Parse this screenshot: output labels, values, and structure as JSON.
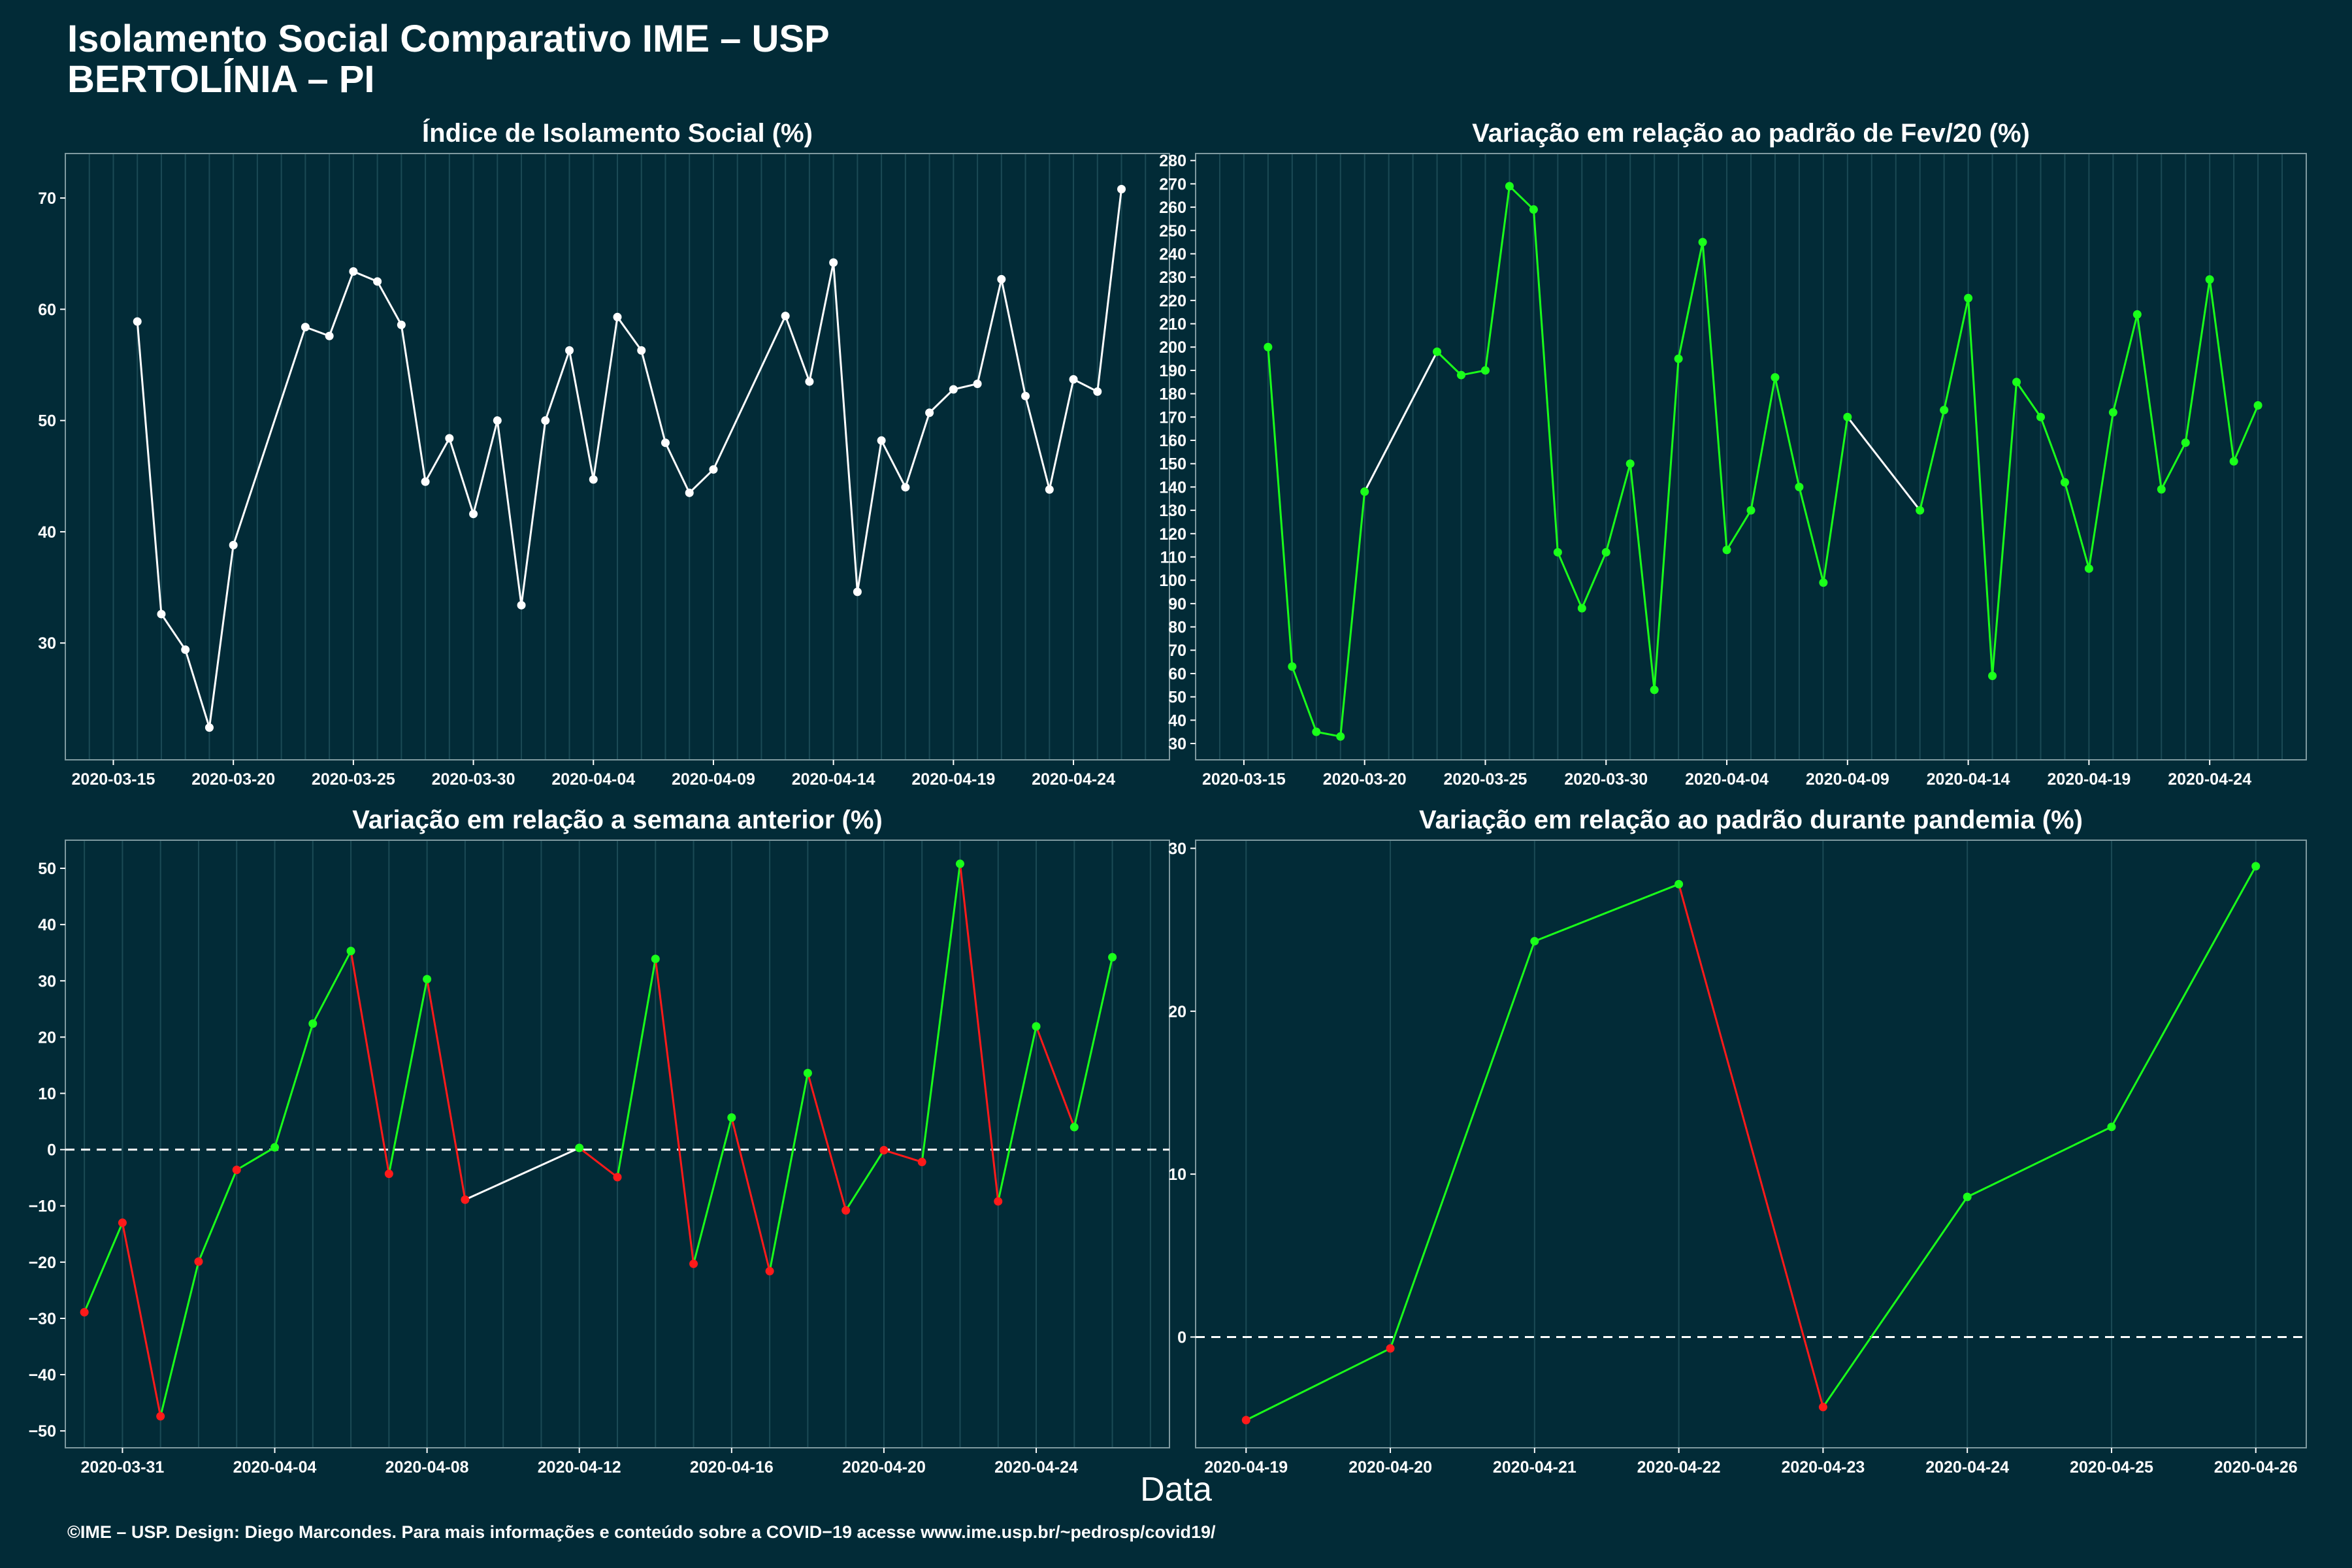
{
  "page": {
    "title_line1": "Isolamento Social Comparativo IME – USP",
    "title_line2": "BERTOLÍNIA – PI",
    "x_label": "Data",
    "footer": "©IME – USP. Design: Diego Marcondes. Para mais informações e conteúdo sobre a COVID−19 acesse www.ime.usp.br/~pedrosp/covid19/"
  },
  "colors": {
    "background": "#022b37",
    "white": "#ffffff",
    "up": "#1aff1a",
    "down": "#ff1a1a",
    "gridline": "#1b4a55"
  },
  "chart_data": [
    {
      "type": "line",
      "title": "Índice de Isolamento Social (%)",
      "ylim": [
        19.5,
        74
      ],
      "yticks": [
        30,
        40,
        50,
        60,
        70
      ],
      "xlim": [
        "2020-03-13",
        "2020-04-28"
      ],
      "xticks": [
        "2020-03-15",
        "2020-03-20",
        "2020-03-25",
        "2020-03-30",
        "2020-04-04",
        "2020-04-09",
        "2020-04-14",
        "2020-04-19",
        "2020-04-24"
      ],
      "color_mode": "white",
      "series": [
        {
          "x": [
            "2020-03-16",
            "2020-03-17",
            "2020-03-18",
            "2020-03-19",
            "2020-03-20",
            "2020-03-23",
            "2020-03-24",
            "2020-03-25",
            "2020-03-26",
            "2020-03-27",
            "2020-03-28",
            "2020-03-29",
            "2020-03-30",
            "2020-03-31",
            "2020-04-01",
            "2020-04-02",
            "2020-04-03",
            "2020-04-04",
            "2020-04-05",
            "2020-04-06",
            "2020-04-07",
            "2020-04-08",
            "2020-04-09",
            "2020-04-12",
            "2020-04-13",
            "2020-04-14",
            "2020-04-15",
            "2020-04-16",
            "2020-04-17",
            "2020-04-18",
            "2020-04-19",
            "2020-04-20",
            "2020-04-21",
            "2020-04-22",
            "2020-04-23",
            "2020-04-24",
            "2020-04-25",
            "2020-04-26"
          ],
          "y": [
            58.9,
            32.6,
            29.4,
            22.4,
            38.8,
            58.4,
            57.6,
            63.4,
            62.5,
            58.6,
            44.5,
            48.4,
            41.6,
            50.0,
            33.4,
            50.0,
            56.3,
            44.7,
            59.3,
            56.3,
            48.0,
            43.5,
            45.6,
            59.4,
            53.5,
            64.2,
            34.6,
            48.2,
            44.0,
            50.7,
            52.8,
            53.3,
            62.7,
            52.2,
            43.8,
            53.7,
            52.6,
            70.8
          ]
        }
      ]
    },
    {
      "type": "line",
      "title": "Variação em relação ao padrão de Fev/20 (%)",
      "ylim": [
        23,
        283
      ],
      "yticks": [
        30,
        40,
        50,
        60,
        70,
        80,
        90,
        100,
        110,
        120,
        130,
        140,
        150,
        160,
        170,
        180,
        190,
        200,
        210,
        220,
        230,
        240,
        250,
        260,
        270,
        280
      ],
      "xlim": [
        "2020-03-13",
        "2020-04-28"
      ],
      "xticks": [
        "2020-03-15",
        "2020-03-20",
        "2020-03-25",
        "2020-03-30",
        "2020-04-04",
        "2020-04-09",
        "2020-04-14",
        "2020-04-19",
        "2020-04-24"
      ],
      "color_mode": "green_gap",
      "series": [
        {
          "x": [
            "2020-03-16",
            "2020-03-17",
            "2020-03-18",
            "2020-03-19",
            "2020-03-20",
            "2020-03-23",
            "2020-03-24",
            "2020-03-25",
            "2020-03-26",
            "2020-03-27",
            "2020-03-28",
            "2020-03-29",
            "2020-03-30",
            "2020-03-31",
            "2020-04-01",
            "2020-04-02",
            "2020-04-03",
            "2020-04-04",
            "2020-04-05",
            "2020-04-06",
            "2020-04-07",
            "2020-04-08",
            "2020-04-09",
            "2020-04-12",
            "2020-04-13",
            "2020-04-14",
            "2020-04-15",
            "2020-04-16",
            "2020-04-17",
            "2020-04-18",
            "2020-04-19",
            "2020-04-20",
            "2020-04-21",
            "2020-04-22",
            "2020-04-23",
            "2020-04-24",
            "2020-04-25",
            "2020-04-26"
          ],
          "y": [
            200,
            63,
            35,
            33,
            138,
            198,
            188,
            190,
            269,
            259,
            112,
            88,
            112,
            150,
            53,
            195,
            245,
            113,
            130,
            187,
            140,
            99,
            170,
            130,
            173,
            221,
            59,
            185,
            170,
            142,
            105,
            172,
            214,
            139,
            159,
            229,
            151,
            175
          ]
        }
      ]
    },
    {
      "type": "line",
      "title": "Variação em relação a semana anterior (%)",
      "ylim": [
        -53,
        55
      ],
      "yticks": [
        -50,
        -40,
        -30,
        -20,
        -10,
        0,
        10,
        20,
        30,
        40,
        50
      ],
      "xlim": [
        "2020-03-29.5",
        "2020-04-27.5"
      ],
      "xticks": [
        "2020-03-31",
        "2020-04-04",
        "2020-04-08",
        "2020-04-12",
        "2020-04-16",
        "2020-04-20",
        "2020-04-24"
      ],
      "color_mode": "signed",
      "zero_line": true,
      "series": [
        {
          "x": [
            "2020-03-30",
            "2020-03-31",
            "2020-04-01",
            "2020-04-02",
            "2020-04-03",
            "2020-04-04",
            "2020-04-05",
            "2020-04-06",
            "2020-04-07",
            "2020-04-08",
            "2020-04-09",
            "2020-04-12",
            "2020-04-13",
            "2020-04-14",
            "2020-04-15",
            "2020-04-16",
            "2020-04-17",
            "2020-04-18",
            "2020-04-19",
            "2020-04-20",
            "2020-04-21",
            "2020-04-22",
            "2020-04-23",
            "2020-04-24",
            "2020-04-25",
            "2020-04-26"
          ],
          "y": [
            -28.9,
            -13.0,
            -47.4,
            -19.9,
            -3.6,
            0.4,
            22.4,
            35.3,
            -4.3,
            30.3,
            -8.9,
            0.3,
            -4.9,
            33.9,
            -20.3,
            5.7,
            -21.6,
            13.6,
            -10.8,
            -0.1,
            -2.2,
            50.8,
            -9.2,
            21.9,
            4.0,
            34.2
          ]
        }
      ]
    },
    {
      "type": "line",
      "title": "Variação em relação ao padrão durante pandemia (%)",
      "ylim": [
        -6.8,
        30.5
      ],
      "yticks": [
        0,
        10,
        20,
        30
      ],
      "xlim": [
        "2020-04-18.65",
        "2020-04-26.35"
      ],
      "xticks": [
        "2020-04-19",
        "2020-04-20",
        "2020-04-21",
        "2020-04-22",
        "2020-04-23",
        "2020-04-24",
        "2020-04-25",
        "2020-04-26"
      ],
      "color_mode": "signed",
      "zero_line": true,
      "series": [
        {
          "x": [
            "2020-04-19",
            "2020-04-20",
            "2020-04-21",
            "2020-04-22",
            "2020-04-23",
            "2020-04-24",
            "2020-04-25",
            "2020-04-26"
          ],
          "y": [
            -5.1,
            -0.7,
            24.3,
            27.8,
            -4.3,
            8.6,
            12.9,
            28.9
          ]
        }
      ]
    }
  ]
}
